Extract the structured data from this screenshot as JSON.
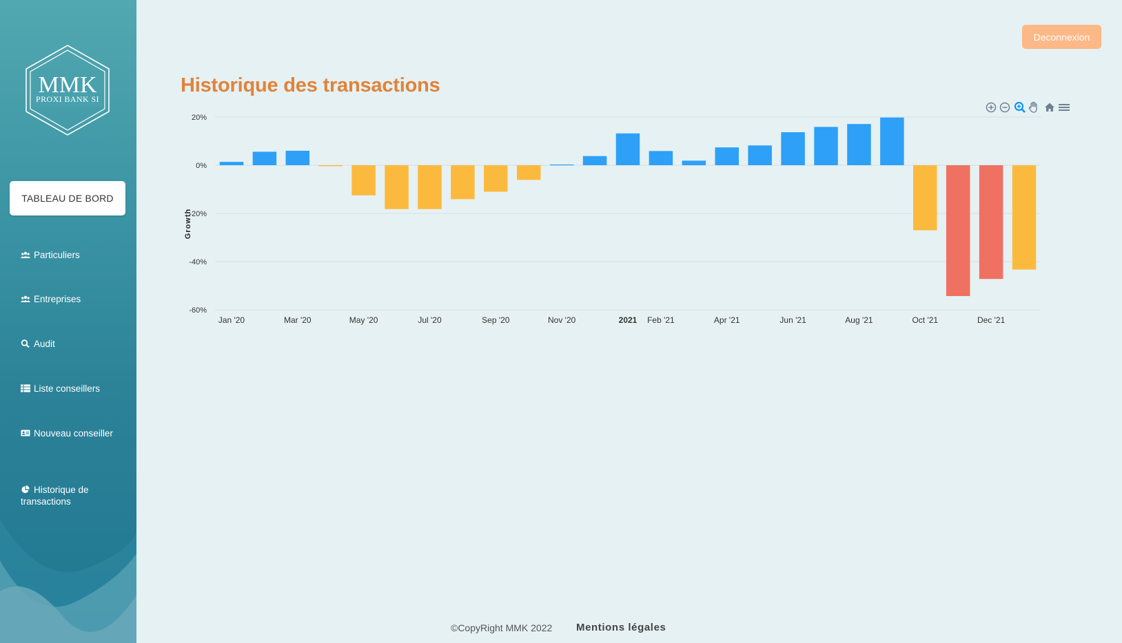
{
  "brand": {
    "name": "MMK",
    "subtitle": "PROXI BANK SI"
  },
  "sidebar": {
    "dashboard_label": "TABLEAU DE BORD",
    "items": [
      {
        "label": "Particuliers",
        "icon": "users-icon"
      },
      {
        "label": "Entreprises",
        "icon": "users-icon"
      },
      {
        "label": "Audit",
        "icon": "search-icon"
      },
      {
        "label": "Liste conseillers",
        "icon": "table-list-icon"
      },
      {
        "label": "Nouveau conseiller",
        "icon": "id-card-icon"
      },
      {
        "label": "Historique de transactions",
        "icon": "pie-chart-icon"
      }
    ]
  },
  "header": {
    "logout_label": "Deconnexion"
  },
  "page": {
    "title": "Historique des transactions"
  },
  "toolbar": {
    "icons": [
      "zoom-in-icon",
      "zoom-out-icon",
      "zoom-select-icon",
      "pan-hand-icon",
      "home-icon",
      "menu-icon"
    ]
  },
  "colors": {
    "positive": "#2ea0f7",
    "negative": "#fbba3e",
    "strong_negative": "#ef7161",
    "title": "#e0833a",
    "logout": "#fcb886"
  },
  "chart_data": {
    "type": "bar",
    "title": "",
    "xlabel": "",
    "ylabel": "Growth",
    "ylim": [
      -60,
      20
    ],
    "yticks": [
      "20%",
      "0%",
      "-20%",
      "-40%",
      "-60%"
    ],
    "xtick_labels": [
      {
        "label": "Jan '20",
        "index": 0
      },
      {
        "label": "Mar '20",
        "index": 2
      },
      {
        "label": "May '20",
        "index": 4
      },
      {
        "label": "Jul '20",
        "index": 6
      },
      {
        "label": "Sep '20",
        "index": 8
      },
      {
        "label": "Nov '20",
        "index": 10
      },
      {
        "label": "2021",
        "index": 12,
        "bold": true
      },
      {
        "label": "Feb '21",
        "index": 13
      },
      {
        "label": "Apr '21",
        "index": 15
      },
      {
        "label": "Jun '21",
        "index": 17
      },
      {
        "label": "Aug '21",
        "index": 19
      },
      {
        "label": "Oct '21",
        "index": 21
      },
      {
        "label": "Dec '21",
        "index": 23
      }
    ],
    "categories": [
      "Jan 2020",
      "Feb 2020",
      "Mar 2020",
      "Apr 2020",
      "May 2020",
      "Jun 2020",
      "Jul 2020",
      "Aug 2020",
      "Sep 2020",
      "Oct 2020",
      "Nov 2020",
      "Dec 2020",
      "Jan 2021",
      "Feb 2021",
      "Mar 2021",
      "Apr 2021",
      "May 2021",
      "Jun 2021",
      "Jul 2021",
      "Aug 2021",
      "Sep 2021",
      "Oct 2021",
      "Nov 2021",
      "Dec 2021",
      "Jan 2022"
    ],
    "values": [
      1.4,
      5.6,
      6.0,
      -0.4,
      -12.5,
      -18.2,
      -18.2,
      -14.1,
      -11.0,
      -6.1,
      0.3,
      3.8,
      13.2,
      5.9,
      1.9,
      7.4,
      8.2,
      13.7,
      15.9,
      17.1,
      19.8,
      -27.0,
      -54.3,
      -47.2,
      -43.3
    ],
    "bar_colors": [
      "positive",
      "positive",
      "positive",
      "negative",
      "negative",
      "negative",
      "negative",
      "negative",
      "negative",
      "negative",
      "positive",
      "positive",
      "positive",
      "positive",
      "positive",
      "positive",
      "positive",
      "positive",
      "positive",
      "positive",
      "positive",
      "negative",
      "strong_negative",
      "strong_negative",
      "negative"
    ],
    "grid": true,
    "legend": "none"
  },
  "footer": {
    "copyright": "©CopyRight MMK 2022",
    "legal": "Mentions légales"
  }
}
